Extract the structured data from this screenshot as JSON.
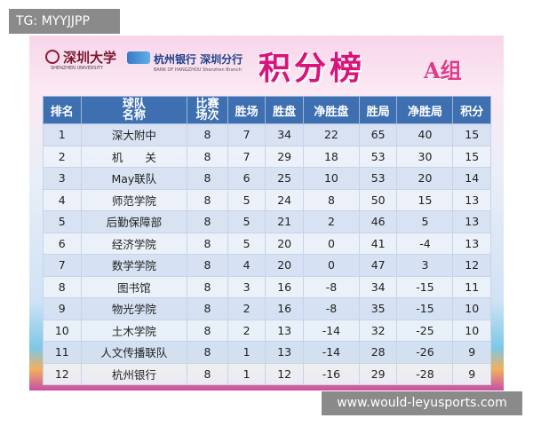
{
  "watermark_top": "TG: MYYJJPP",
  "header": {
    "university": "深圳大学",
    "university_en": "SHENZHEN UNIVERSITY",
    "bank": "杭州银行 深圳分行",
    "bank_en": "BANK OF HANGZHOU Shenzhen Branch",
    "title": "积分榜",
    "group": "A组"
  },
  "table": {
    "columns": [
      "排名",
      "球队名称",
      "比赛场次",
      "胜场",
      "胜盘",
      "净胜盘",
      "胜局",
      "净胜局",
      "积分"
    ],
    "rows": [
      [
        1,
        "深大附中",
        8,
        7,
        34,
        22,
        65,
        40,
        15
      ],
      [
        2,
        "机　　关",
        8,
        7,
        29,
        18,
        53,
        30,
        15
      ],
      [
        3,
        "May联队",
        8,
        6,
        25,
        10,
        53,
        20,
        14
      ],
      [
        4,
        "师范学院",
        8,
        5,
        24,
        8,
        50,
        15,
        13
      ],
      [
        5,
        "后勤保障部",
        8,
        5,
        21,
        2,
        46,
        5,
        13
      ],
      [
        6,
        "经济学院",
        8,
        5,
        20,
        0,
        41,
        -4,
        13
      ],
      [
        7,
        "数学学院",
        8,
        4,
        20,
        0,
        47,
        3,
        12
      ],
      [
        8,
        "图书馆",
        8,
        3,
        16,
        -8,
        34,
        -15,
        11
      ],
      [
        9,
        "物光学院",
        8,
        2,
        16,
        -8,
        35,
        -15,
        10
      ],
      [
        10,
        "土木学院",
        8,
        2,
        13,
        -14,
        32,
        -25,
        10
      ],
      [
        11,
        "人文传播联队",
        8,
        1,
        13,
        -14,
        28,
        -26,
        9
      ],
      [
        12,
        "杭州银行",
        8,
        1,
        12,
        -16,
        29,
        -28,
        9
      ]
    ]
  },
  "watermark_bottom": "www.would-leyusports.com"
}
